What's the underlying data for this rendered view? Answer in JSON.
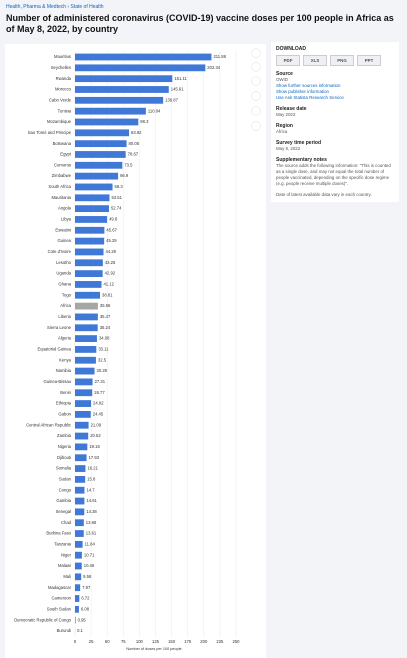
{
  "header": {
    "breadcrumb": [
      "Health, Pharma & Medtech",
      "State of Health"
    ],
    "title": "Number of administered coronavirus (COVID-19) vaccine doses per 100 people in Africa as of May 8, 2022, by country"
  },
  "chart_data": {
    "type": "hbar",
    "categories": [
      "Mauritius",
      "Seychelles",
      "Rwanda",
      "Morocco",
      "Cabo Verde",
      "Tunisia",
      "Mozambique",
      "Sao Tomé and Principe",
      "Botswana",
      "Egypt",
      "Comoros",
      "Zimbabwe",
      "South Africa",
      "Mauritania",
      "Angola",
      "Libya",
      "Eswatini",
      "Guinea",
      "Cote d'Ivoire",
      "Lesotho",
      "Uganda",
      "Ghana",
      "Togo",
      "Africa",
      "Liberia",
      "Sierra Leone",
      "Algeria",
      "Equatorial Guinea",
      "Kenya",
      "Namibia",
      "Guinea-Bissau",
      "Benin",
      "Ethiopia",
      "Gabon",
      "Central African Republic",
      "Zambia",
      "Nigeria",
      "Djibouti",
      "Somalia",
      "Sudan",
      "Congo",
      "Gambia",
      "Senegal",
      "Chad",
      "Burkina Faso",
      "Tanzania",
      "Niger",
      "Malawi",
      "Mali",
      "Madagascar",
      "Cameroon",
      "South Sudan",
      "Democratic Republic of Congo",
      "Burundi"
    ],
    "values": [
      211.88,
      202.34,
      151.11,
      145.61,
      136.87,
      110.04,
      98.3,
      83.92,
      80.05,
      78.67,
      73.5,
      66.9,
      58.3,
      53.51,
      52.74,
      49.8,
      45.67,
      45.29,
      44.29,
      43.25,
      42.92,
      41.12,
      38.81,
      35.56,
      35.47,
      35.24,
      34.08,
      33.11,
      32.5,
      30.29,
      27.31,
      26.77,
      24.92,
      24.45,
      21.09,
      20.52,
      19.16,
      17.93,
      16.21,
      15.8,
      14.7,
      14.61,
      14.38,
      13.68,
      13.61,
      11.84,
      10.71,
      10.46,
      9.58,
      7.97,
      6.72,
      6.08,
      0.95,
      0.1
    ],
    "colors": [
      "#4078d8",
      "#4078d8",
      "#4078d8",
      "#4078d8",
      "#4078d8",
      "#4078d8",
      "#4078d8",
      "#4078d8",
      "#4078d8",
      "#4078d8",
      "#4078d8",
      "#4078d8",
      "#4078d8",
      "#4078d8",
      "#4078d8",
      "#4078d8",
      "#4078d8",
      "#4078d8",
      "#4078d8",
      "#4078d8",
      "#4078d8",
      "#4078d8",
      "#4078d8",
      "#a6a6a6",
      "#4078d8",
      "#4078d8",
      "#4078d8",
      "#4078d8",
      "#4078d8",
      "#4078d8",
      "#4078d8",
      "#4078d8",
      "#4078d8",
      "#4078d8",
      "#4078d8",
      "#4078d8",
      "#4078d8",
      "#4078d8",
      "#4078d8",
      "#4078d8",
      "#4078d8",
      "#4078d8",
      "#4078d8",
      "#4078d8",
      "#4078d8",
      "#4078d8",
      "#4078d8",
      "#4078d8",
      "#4078d8",
      "#4078d8",
      "#4078d8",
      "#4078d8",
      "#4078d8",
      "#4078d8"
    ],
    "xlim": [
      0,
      250
    ],
    "xticks": [
      0,
      25,
      50,
      75,
      100,
      125,
      150,
      175,
      200,
      225,
      250
    ],
    "x_label": "Number of doses per 100 people",
    "grid": true
  },
  "sidebar": {
    "download": "DOWNLOAD",
    "formats": [
      "PDF",
      "XLS",
      "PNG",
      "PPT"
    ],
    "source_heading": "Source",
    "source": "OWID",
    "source_links": [
      "Show further sources information",
      "Show publisher information",
      "Use Ask Statista Research Service"
    ],
    "release_heading": "Release date",
    "release": "May 2022",
    "region_heading": "Region",
    "region": "Africa",
    "period_heading": "Survey time period",
    "period": "May 8, 2022",
    "notes_heading": "Supplementary notes",
    "notes": [
      "The source adds the following information: \"This is counted as a single dose, and may not equal the total number of people vaccinated, depending on the specific dose regime (e.g. people receive multiple doses)\".",
      "Date of latest available data vary in each country."
    ]
  }
}
